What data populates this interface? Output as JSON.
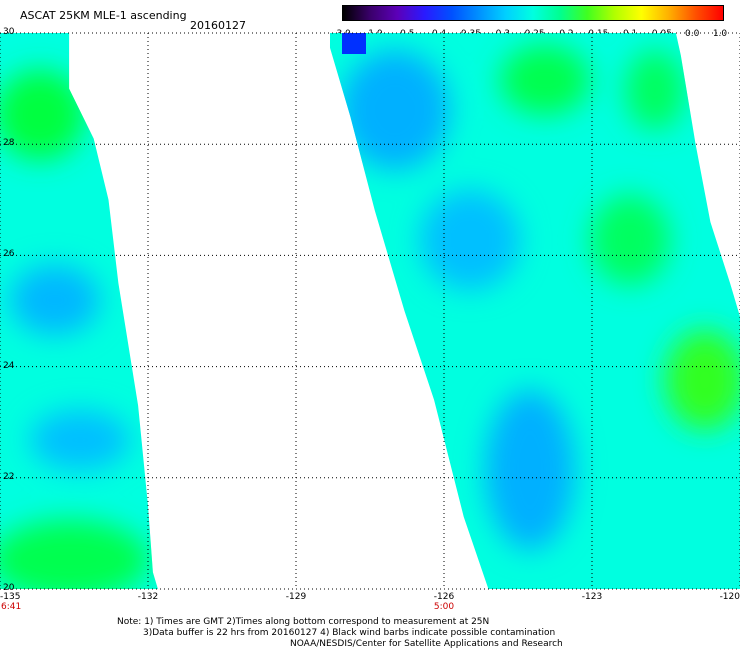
{
  "title": "ASCAT 25KM MLE-1 ascending",
  "date": "20160127",
  "colorbar": {
    "labels": [
      "-3.0",
      "-1.0",
      "-0.5",
      "-0.4",
      "-0.35",
      "-0.3",
      "-0.25",
      "-0.2",
      "-0.15",
      "-0.1",
      "-0.05",
      "0.0",
      "1.0"
    ],
    "colors": [
      "#000000",
      "#3a006a",
      "#5c00b8",
      "#2a1aff",
      "#0050ff",
      "#0090ff",
      "#00d0ff",
      "#00ffe0",
      "#00ff90",
      "#40ff20",
      "#b0ff00",
      "#ffff00",
      "#ffb000",
      "#ff5000",
      "#ff0000"
    ]
  },
  "axes": {
    "lon_ticks": [
      "-135",
      "-132",
      "-129",
      "-126",
      "-123",
      "-120"
    ],
    "lat_ticks": [
      "30",
      "28",
      "26",
      "24",
      "22",
      "20"
    ],
    "lon_range": [
      -135,
      -120
    ],
    "lat_range": [
      20,
      30
    ]
  },
  "pass_times": [
    {
      "label": "6:41",
      "lon": -135
    },
    {
      "label": "5:00",
      "lon": -126
    }
  ],
  "notes": {
    "line1": "Note: 1) Times are GMT 2)Times along bottom correspond to measurement at 25N",
    "line2": "3)Data buffer is 22 hrs from 20160127 4) Black wind barbs indicate possible contamination",
    "line3": "NOAA/NESDIS/Center for Satellite Applications and Research"
  },
  "colors": {
    "cyan": "#00ffe0",
    "blue": "#00b0ff",
    "green": "#00ff40",
    "time_label": "#cc0000"
  },
  "swaths": [
    {
      "name": "west-swath",
      "polygon_lonlat": [
        [
          -135,
          30
        ],
        [
          -133.6,
          30
        ],
        [
          -133.6,
          29.0
        ],
        [
          -133.1,
          28.1
        ],
        [
          -132.8,
          27.0
        ],
        [
          -132.6,
          25.5
        ],
        [
          -132.2,
          23.3
        ],
        [
          -132.0,
          21.5
        ],
        [
          -131.9,
          20.3
        ],
        [
          -131.8,
          20
        ],
        [
          -135,
          20
        ]
      ]
    },
    {
      "name": "east-swath",
      "polygon_lonlat": [
        [
          -127.8,
          30
        ],
        [
          -121.3,
          30
        ],
        [
          -121.2,
          29.6
        ],
        [
          -120.9,
          28.0
        ],
        [
          -120.6,
          26.6
        ],
        [
          -120.2,
          25.5
        ],
        [
          -120,
          24.9
        ],
        [
          -120,
          20
        ],
        [
          -125.1,
          20
        ],
        [
          -125.6,
          21.3
        ],
        [
          -126.2,
          23.4
        ],
        [
          -126.8,
          25.0
        ],
        [
          -127.4,
          26.8
        ],
        [
          -127.9,
          28.5
        ],
        [
          -128.4,
          30
        ]
      ]
    }
  ]
}
